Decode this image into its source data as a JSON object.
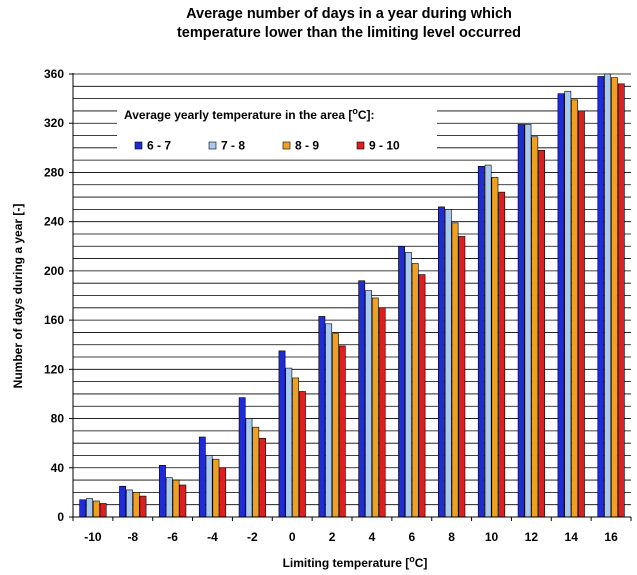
{
  "chart_data": {
    "type": "bar",
    "title_line1": "Average number of days in a year during which",
    "title_line2": "temperature lower than the limiting level occurred",
    "xlabel": "Limiting temperature [",
    "xlabel_sup": "o",
    "xlabel_end": "C]",
    "ylabel": "Number of days during a year [-]",
    "ylim": [
      0,
      360
    ],
    "yticks": [
      0,
      40,
      80,
      120,
      160,
      200,
      240,
      280,
      320,
      360
    ],
    "minor_grid_step": 10,
    "grid": true,
    "legend_title": "Average yearly temperature in the area [",
    "legend_title_sup": "o",
    "legend_title_end": "C]:",
    "legend_position": "top-left",
    "categories": [
      "-10",
      "-8",
      "-6",
      "-4",
      "-2",
      "0",
      "2",
      "4",
      "6",
      "8",
      "10",
      "12",
      "14",
      "16"
    ],
    "series": [
      {
        "name": "6 - 7",
        "color": "#1f2bd6",
        "values": [
          14,
          25,
          42,
          65,
          97,
          135,
          163,
          192,
          220,
          252,
          285,
          319,
          344,
          358
        ]
      },
      {
        "name": "7 - 8",
        "color": "#a9c9f0",
        "values": [
          15,
          22,
          32,
          50,
          80,
          121,
          157,
          184,
          215,
          250,
          286,
          319,
          346,
          360
        ]
      },
      {
        "name": "8 - 9",
        "color": "#f0a020",
        "values": [
          13,
          20,
          30,
          47,
          73,
          113,
          149,
          178,
          206,
          239,
          276,
          309,
          339,
          357
        ]
      },
      {
        "name": "9 - 10",
        "color": "#dc1f1f",
        "values": [
          11,
          17,
          26,
          40,
          64,
          102,
          139,
          170,
          197,
          228,
          264,
          298,
          330,
          352
        ]
      }
    ]
  }
}
